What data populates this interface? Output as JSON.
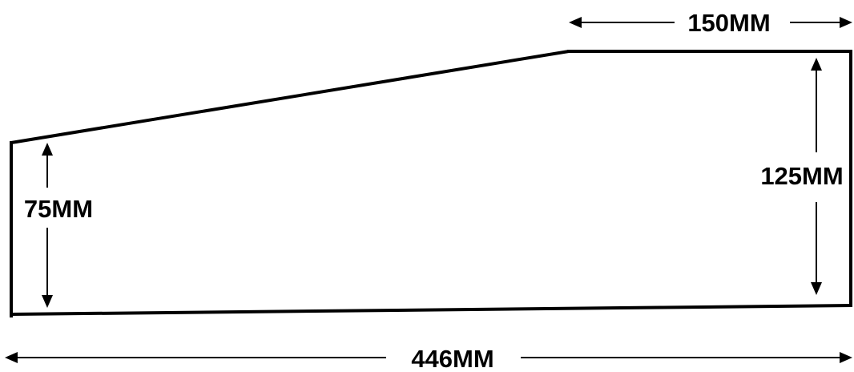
{
  "diagram": {
    "dimensions": {
      "top_length": "150MM",
      "right_height": "125MM",
      "left_height": "75MM",
      "bottom_length": "446MM"
    }
  }
}
